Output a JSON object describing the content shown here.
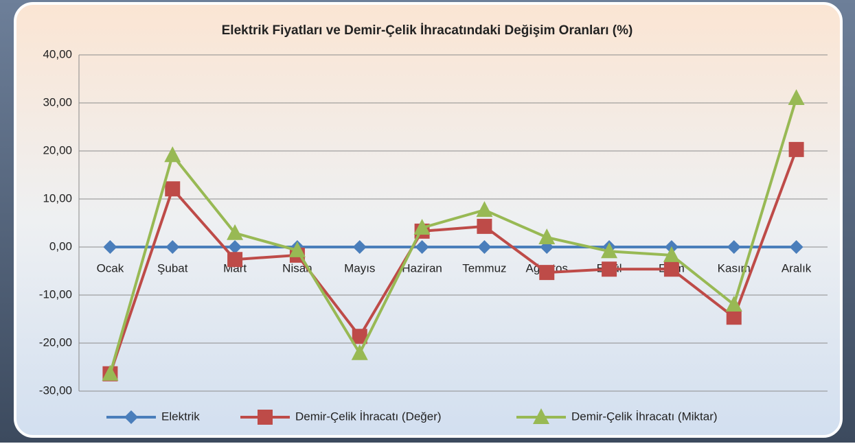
{
  "chart_data": {
    "type": "line",
    "title": "Elektrik Fiyatları ve Demir-Çelik  İhracatındaki Değişim Oranları (%)",
    "categories": [
      "Ocak",
      "Şubat",
      "Mart",
      "Nisan",
      "Mayıs",
      "Haziran",
      "Temmuz",
      "Ağustos",
      "Eylül",
      "Ekim",
      "Kasım",
      "Aralık"
    ],
    "series": [
      {
        "name": "Elektrik",
        "color": "#4a7ebb",
        "values": [
          0,
          0,
          0,
          0,
          0,
          0,
          0,
          0,
          0,
          0,
          0,
          0
        ]
      },
      {
        "name": "Demir-Çelik İhracatı (Değer)",
        "color": "#be4b48",
        "values": [
          -26.4,
          12.1,
          -2.6,
          -1.7,
          -18.6,
          3.3,
          4.3,
          -5.3,
          -4.6,
          -4.6,
          -14.6,
          20.3
        ]
      },
      {
        "name": "Demir-Çelik İhracatı (Miktar)",
        "color": "#98b954",
        "values": [
          -26.4,
          19.1,
          2.9,
          -0.7,
          -22.1,
          4.0,
          7.7,
          2.0,
          -0.9,
          -1.7,
          -12.0,
          31.0
        ]
      }
    ],
    "ylim": [
      -30,
      40
    ],
    "yticks": [
      {
        "value": -30,
        "label": "-30,00"
      },
      {
        "value": -20,
        "label": "-20,00"
      },
      {
        "value": -10,
        "label": "-10,00"
      },
      {
        "value": 0,
        "label": "0,00"
      },
      {
        "value": 10,
        "label": "10,00"
      },
      {
        "value": 20,
        "label": "20,00"
      },
      {
        "value": 30,
        "label": "30,00"
      },
      {
        "value": 40,
        "label": "40,00"
      }
    ],
    "grid": true,
    "legend": "bottom"
  }
}
